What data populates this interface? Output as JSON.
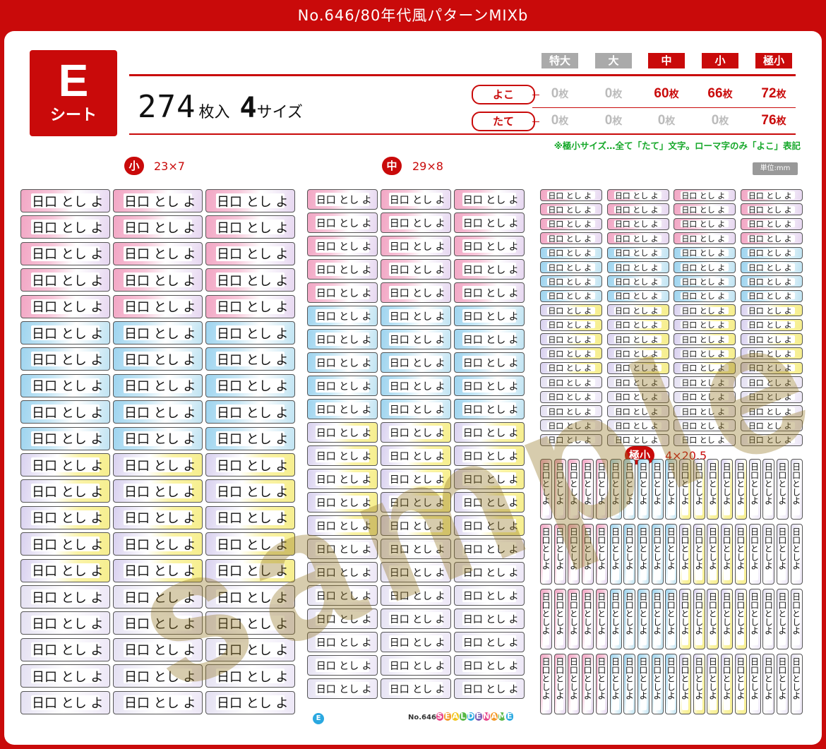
{
  "title": "No.646/80年代風パターンMIXb",
  "sheet_badge": {
    "letter": "E",
    "sub": "シート"
  },
  "summary": {
    "count": "274",
    "count_unit": "枚入",
    "sizes": "4",
    "sizes_unit": "サイズ"
  },
  "size_headers": [
    {
      "label": "特大",
      "active": false
    },
    {
      "label": "大",
      "active": false
    },
    {
      "label": "中",
      "active": true
    },
    {
      "label": "小",
      "active": true
    },
    {
      "label": "極小",
      "active": true
    }
  ],
  "rows": [
    {
      "label": "よこ",
      "values": [
        "0",
        "0",
        "60",
        "66",
        "72"
      ],
      "unit": "枚"
    },
    {
      "label": "たて",
      "values": [
        "0",
        "0",
        "0",
        "0",
        "76"
      ],
      "unit": "枚"
    }
  ],
  "note": "※極小サイズ…全て「たて」文字。ローマ字のみ「よこ」表記",
  "unit_label": "単位:mm",
  "sections": {
    "small": {
      "badge": "小",
      "dims": "23×7"
    },
    "medium": {
      "badge": "中",
      "dims": "29×8"
    },
    "tiny": {
      "badge": "極小",
      "dims": "4×20.5"
    }
  },
  "sample_name": "日口 とし よ",
  "watermark": "sample",
  "footer": {
    "sheet_letter": "E",
    "product_no": "No.646",
    "logo": "SEALDENAME"
  },
  "colors": {
    "brand_red": "#c90a0a",
    "note_green": "#16a82a",
    "inactive_gray": "#aaaaaa",
    "pink": "#f2a6c4",
    "blue": "#9ed4ef",
    "yellow": "#f6ee8e",
    "lilac": "#e4e0f2"
  }
}
